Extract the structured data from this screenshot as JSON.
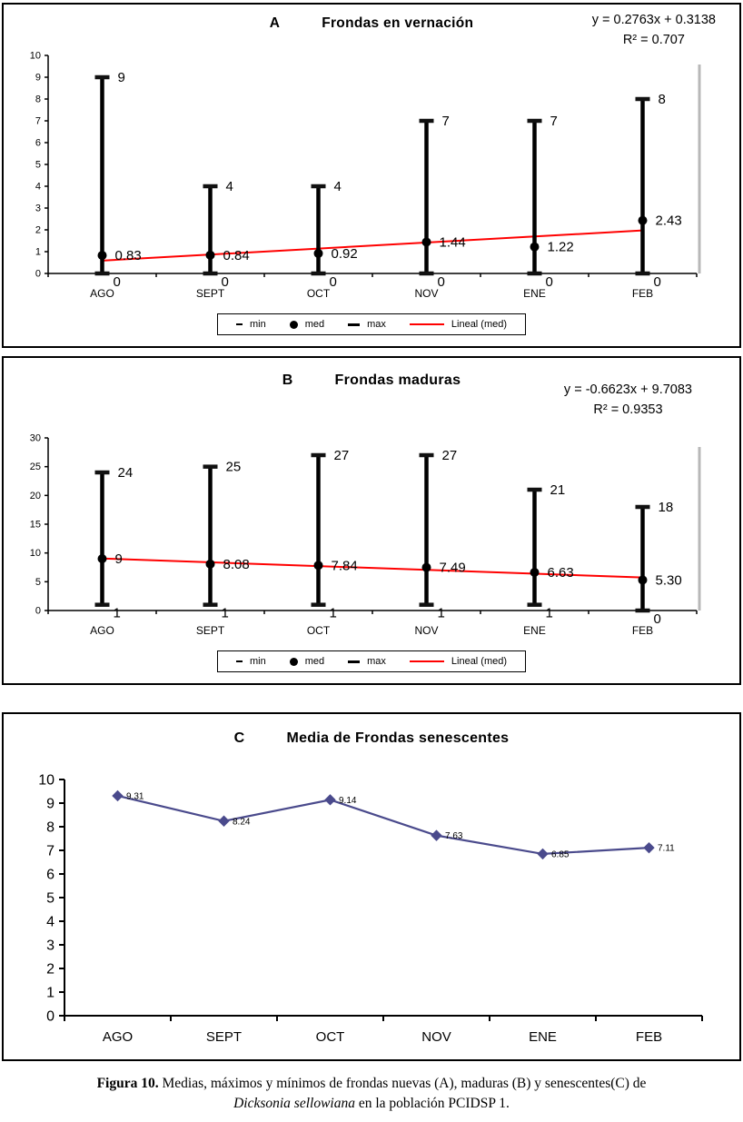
{
  "figure": {
    "caption": {
      "bold": "Figura 10.",
      "line1": " Medias, máximos y mínimos de frondas nuevas (A), maduras (B) y senescentes(C) de",
      "italic": "Dicksonia sellowiana",
      "line2": " en la población PCIDSP 1."
    }
  },
  "chart_data": [
    {
      "panel": "A",
      "type": "scatter",
      "title": "Frondas en vernación",
      "equation": "y = 0.2763x + 0.3138",
      "r_squared": "R² = 0.707",
      "categories": [
        "AGO",
        "SEPT",
        "OCT",
        "NOV",
        "ENE",
        "FEB"
      ],
      "series": [
        {
          "name": "max",
          "values": [
            9,
            4,
            4,
            7,
            7,
            8
          ]
        },
        {
          "name": "med",
          "values": [
            0.83,
            0.84,
            0.92,
            1.44,
            1.22,
            2.43
          ]
        },
        {
          "name": "min",
          "values": [
            0,
            0,
            0,
            0,
            0,
            0
          ]
        }
      ],
      "max_labels": [
        "9",
        "4",
        "4",
        "7",
        "7",
        "8"
      ],
      "med_labels": [
        "0.83",
        "0.84",
        "0.92",
        "1.44",
        "1.22",
        "2.43"
      ],
      "min_labels": [
        "0",
        "0",
        "0",
        "0",
        "0",
        "0"
      ],
      "ylim": [
        0,
        10
      ],
      "ytick": 1,
      "trend": {
        "label": "Lineal (med)",
        "slope": 0.2763,
        "intercept": 0.3138,
        "color": "#ff0000"
      },
      "legend": [
        "min",
        "med",
        "max",
        "Lineal (med)"
      ]
    },
    {
      "panel": "B",
      "type": "scatter",
      "title": "Frondas maduras",
      "equation": "y = -0.6623x + 9.7083",
      "r_squared": "R² = 0.9353",
      "categories": [
        "AGO",
        "SEPT",
        "OCT",
        "NOV",
        "ENE",
        "FEB"
      ],
      "series": [
        {
          "name": "max",
          "values": [
            24,
            25,
            27,
            27,
            21,
            18
          ]
        },
        {
          "name": "med",
          "values": [
            9,
            8.08,
            7.84,
            7.49,
            6.63,
            5.3
          ]
        },
        {
          "name": "min",
          "values": [
            1,
            1,
            1,
            1,
            1,
            0
          ]
        }
      ],
      "max_labels": [
        "24",
        "25",
        "27",
        "27",
        "21",
        "18"
      ],
      "med_labels": [
        "9",
        "8.08",
        "7.84",
        "7.49",
        "6.63",
        "5.30"
      ],
      "min_labels": [
        "1",
        "1",
        "1",
        "1",
        "1",
        "0"
      ],
      "ylim": [
        0,
        30
      ],
      "ytick": 5,
      "trend": {
        "label": "Lineal (med)",
        "slope": -0.6623,
        "intercept": 9.7083,
        "color": "#ff0000"
      },
      "legend": [
        "min",
        "med",
        "max",
        "Lineal (med)"
      ]
    },
    {
      "panel": "C",
      "type": "line",
      "title": "Media de Frondas senescentes",
      "categories": [
        "AGO",
        "SEPT",
        "OCT",
        "NOV",
        "ENE",
        "FEB"
      ],
      "values": [
        9.31,
        8.24,
        9.14,
        7.63,
        6.85,
        7.11
      ],
      "point_labels": [
        "9.31",
        "8.24",
        "9.14",
        "7.63",
        "6.85",
        "7.11"
      ],
      "ylim": [
        0,
        10
      ],
      "ytick": 1,
      "line_color": "#4a4a8c"
    }
  ]
}
